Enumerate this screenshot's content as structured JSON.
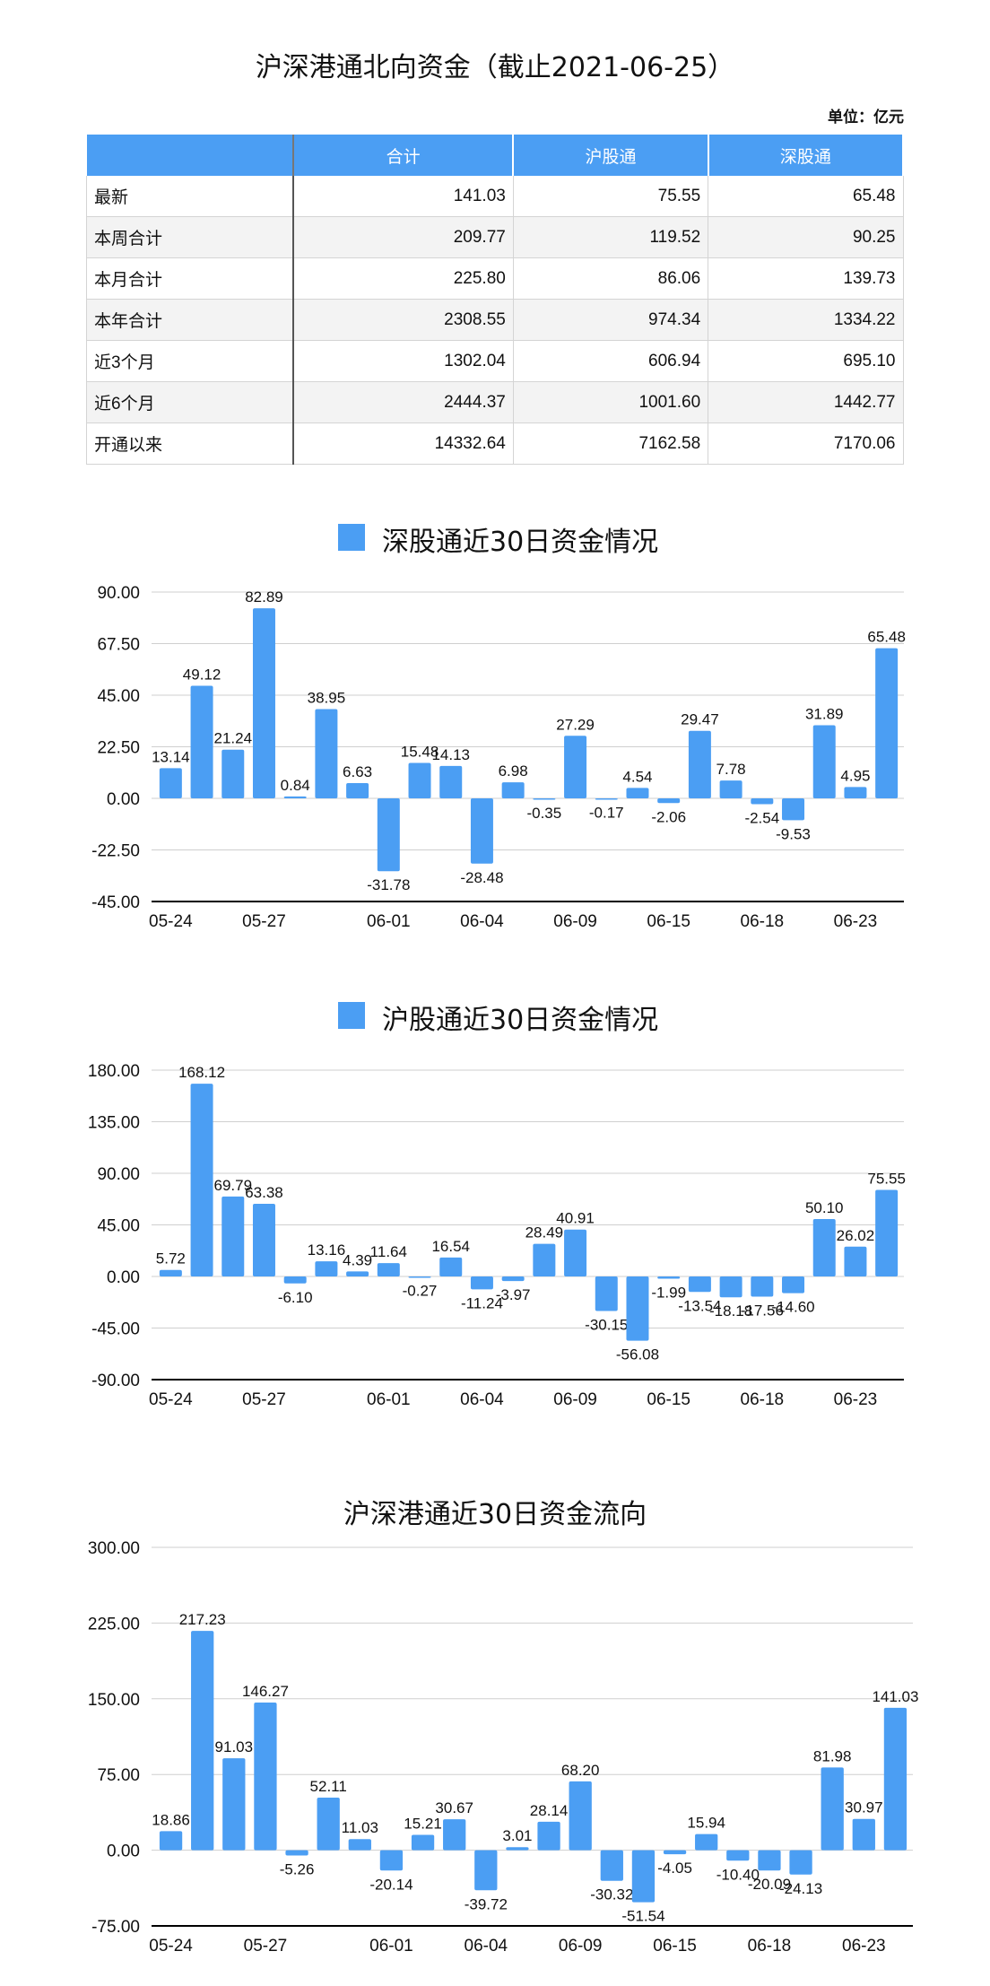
{
  "page": {
    "title": "沪深港通北向资金（截止2021-06-25）",
    "unit": "单位：亿元"
  },
  "table": {
    "headers": [
      "",
      "合计",
      "沪股通",
      "深股通"
    ],
    "rows": [
      {
        "label": "最新",
        "total": "141.03",
        "sh": "75.55",
        "sz": "65.48"
      },
      {
        "label": "本周合计",
        "total": "209.77",
        "sh": "119.52",
        "sz": "90.25"
      },
      {
        "label": "本月合计",
        "total": "225.80",
        "sh": "86.06",
        "sz": "139.73"
      },
      {
        "label": "本年合计",
        "total": "2308.55",
        "sh": "974.34",
        "sz": "1334.22"
      },
      {
        "label": "近3个月",
        "total": "1302.04",
        "sh": "606.94",
        "sz": "695.10"
      },
      {
        "label": "近6个月",
        "total": "2444.37",
        "sh": "1001.60",
        "sz": "1442.77"
      },
      {
        "label": "开通以来",
        "total": "14332.64",
        "sh": "7162.58",
        "sz": "7170.06"
      }
    ]
  },
  "colors": {
    "bar": "#4b9ef3",
    "header": "#4b9ef3",
    "grid": "#cfcfcf",
    "axis": "#000000"
  },
  "chart_data": [
    {
      "type": "bar",
      "title": "深股通近30日资金情况",
      "legend": "top",
      "grid": true,
      "ylim": [
        -45,
        90
      ],
      "yticks": [
        "-45.00",
        "-22.50",
        "0.00",
        "22.50",
        "45.00",
        "67.50",
        "90.00"
      ],
      "xticks": [
        "05-24",
        "05-27",
        "06-01",
        "06-04",
        "06-09",
        "06-15",
        "06-18",
        "06-23"
      ],
      "values": [
        13.14,
        49.12,
        21.24,
        82.89,
        0.84,
        38.95,
        6.63,
        -31.78,
        15.48,
        14.13,
        -28.48,
        6.98,
        -0.35,
        27.29,
        -0.17,
        4.54,
        -2.06,
        29.47,
        7.78,
        -2.54,
        -9.53,
        31.89,
        4.95,
        65.48
      ],
      "labels": [
        "13.14",
        "49.12",
        "21.24",
        "82.89",
        "0.84",
        "38.95",
        "6.63",
        "-31.78",
        "15.48",
        "14.13",
        "-28.48",
        "6.98",
        "-0.35",
        "27.29",
        "-0.17",
        "4.54",
        "-2.06",
        "29.47",
        "7.78",
        "-2.54",
        "-9.53",
        "31.89",
        "4.95",
        "65.48"
      ]
    },
    {
      "type": "bar",
      "title": "沪股通近30日资金情况",
      "legend": "top",
      "grid": true,
      "ylim": [
        -90,
        180
      ],
      "yticks": [
        "-90.00",
        "-45.00",
        "0.00",
        "45.00",
        "90.00",
        "135.00",
        "180.00"
      ],
      "xticks": [
        "05-24",
        "05-27",
        "06-01",
        "06-04",
        "06-09",
        "06-15",
        "06-18",
        "06-23"
      ],
      "values": [
        5.72,
        168.12,
        69.79,
        63.38,
        -6.1,
        13.16,
        4.39,
        11.64,
        -0.27,
        16.54,
        -11.24,
        -3.97,
        28.49,
        40.91,
        -30.15,
        -56.08,
        -1.99,
        -13.54,
        -18.18,
        -17.56,
        -14.6,
        50.1,
        26.02,
        75.55
      ],
      "labels": [
        "5.72",
        "168.12",
        "69.79",
        "63.38",
        "-6.10",
        "13.16",
        "4.39",
        "11.64",
        "-0.27",
        "16.54",
        "-11.24",
        "-3.97",
        "28.49",
        "40.91",
        "-30.15",
        "-56.08",
        "-1.99",
        "-13.54",
        "-18.18",
        "-17.56",
        "-14.60",
        "50.10",
        "26.02",
        "75.55"
      ]
    },
    {
      "type": "bar",
      "title": "沪深港通近30日资金流向",
      "grid": true,
      "ylim": [
        -75,
        300
      ],
      "yticks": [
        "-75.00",
        "0.00",
        "75.00",
        "150.00",
        "225.00",
        "300.00"
      ],
      "xticks": [
        "05-24",
        "05-27",
        "06-01",
        "06-04",
        "06-09",
        "06-15",
        "06-18",
        "06-23"
      ],
      "values": [
        18.86,
        217.23,
        91.03,
        146.27,
        -5.26,
        52.11,
        11.03,
        -20.14,
        15.21,
        30.67,
        -39.72,
        3.01,
        28.14,
        68.2,
        -30.32,
        -51.54,
        -4.05,
        15.94,
        -10.4,
        -20.09,
        -24.13,
        81.98,
        30.97,
        141.03
      ],
      "labels": [
        "18.86",
        "217.23",
        "91.03",
        "146.27",
        "-5.26",
        "52.11",
        "11.03",
        "-20.14",
        "15.21",
        "30.67",
        "-39.72",
        "3.01",
        "28.14",
        "68.20",
        "-30.32",
        "-51.54",
        "-4.05",
        "15.94",
        "-10.40",
        "-20.09",
        "-24.13",
        "81.98",
        "30.97",
        "141.03"
      ]
    }
  ]
}
